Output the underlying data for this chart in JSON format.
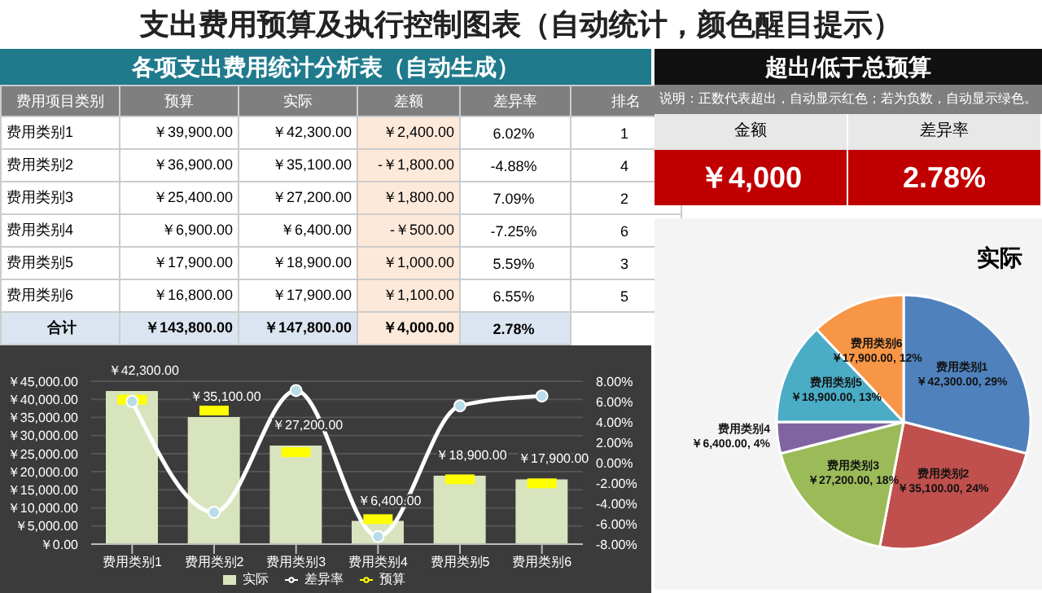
{
  "chart_data": [
    {
      "type": "other",
      "title": "支出费用预算及执行控制图表（自动统计，颜色醒目提示）",
      "subtitle": "各项支出费用统计分析表（自动生成）",
      "categories": [
        "费用项目类别",
        "预算",
        "实际",
        "差额",
        "差异率",
        "排名"
      ],
      "y_categories": [
        "费用类别1",
        "费用类别2",
        "费用类别3",
        "费用类别4",
        "费用类别5",
        "费用类别6",
        "合计"
      ],
      "cell_labels": [
        [
          "￥39,900.00",
          "￥42,300.00",
          "￥2,400.00",
          "6.02%",
          "1"
        ],
        [
          "￥36,900.00",
          "￥35,100.00",
          "-￥1,800.00",
          "-4.88%",
          "4"
        ],
        [
          "￥25,400.00",
          "￥27,200.00",
          "￥1,800.00",
          "7.09%",
          "2"
        ],
        [
          "￥6,900.00",
          "￥6,400.00",
          "-￥500.00",
          "-7.25%",
          "6"
        ],
        [
          "￥17,900.00",
          "￥18,900.00",
          "￥1,000.00",
          "5.59%",
          "3"
        ],
        [
          "￥16,800.00",
          "￥17,900.00",
          "￥1,100.00",
          "6.55%",
          "5"
        ],
        [
          "￥143,800.00",
          "￥147,800.00",
          "￥4,000.00",
          "2.78%"
        ]
      ]
    },
    {
      "type": "other",
      "title": "超出/低于总预算",
      "subtitle": "说明：正数代表超出，自动显示红色；若为负数，自动显示绿色。",
      "categories": [
        "金额",
        "差异率"
      ],
      "cell_labels": [
        [
          "￥4,000",
          "2.78%"
        ]
      ],
      "color": "#c00000"
    },
    {
      "type": "bar",
      "categories": [
        "费用类别1",
        "费用类别2",
        "费用类别3",
        "费用类别4",
        "费用类别5",
        "费用类别6"
      ],
      "series": [
        {
          "name": "实际",
          "type": "bar",
          "color": "#d7e4bd",
          "values": [
            42300,
            35100,
            27200,
            6400,
            18900,
            17900
          ],
          "value_labels": [
            "￥42,300.00",
            "￥35,100.00",
            "￥27,200.00",
            "￥6,400.00",
            "￥18,900.00",
            "￥17,900.00"
          ]
        },
        {
          "name": "预算",
          "type": "scatter",
          "color": "#ffff00",
          "values": [
            39900,
            36900,
            25400,
            6900,
            17900,
            16800
          ]
        },
        {
          "name": "差异率",
          "type": "line",
          "axis": "y2",
          "color": "#ffffff",
          "marker": "circle",
          "values": [
            6.02,
            -4.88,
            7.09,
            -7.25,
            5.59,
            6.55
          ]
        }
      ],
      "ylim": [
        0,
        45000
      ],
      "yticks": [
        {
          "value": 0,
          "label": "￥0.00"
        },
        {
          "value": 5000,
          "label": "￥5,000.00"
        },
        {
          "value": 10000,
          "label": "￥10,000.00"
        },
        {
          "value": 15000,
          "label": "￥15,000.00"
        },
        {
          "value": 20000,
          "label": "￥20,000.00"
        },
        {
          "value": 25000,
          "label": "￥25,000.00"
        },
        {
          "value": 30000,
          "label": "￥30,000.00"
        },
        {
          "value": 35000,
          "label": "￥35,000.00"
        },
        {
          "value": 40000,
          "label": "￥40,000.00"
        },
        {
          "value": 45000,
          "label": "￥45,000.00"
        }
      ],
      "y2lim": [
        -8,
        8
      ],
      "y2ticks": [
        {
          "value": -8,
          "label": "-8.00%"
        },
        {
          "value": -6,
          "label": "-6.00%"
        },
        {
          "value": -4,
          "label": "-4.00%"
        },
        {
          "value": -2,
          "label": "-2.00%"
        },
        {
          "value": 0,
          "label": "0.00%"
        },
        {
          "value": 2,
          "label": "2.00%"
        },
        {
          "value": 4,
          "label": "4.00%"
        },
        {
          "value": 6,
          "label": "6.00%"
        },
        {
          "value": 8,
          "label": "8.00%"
        }
      ],
      "grid": "y",
      "legend": "bottom"
    },
    {
      "type": "pie",
      "title": "实际",
      "categories": [
        "费用类别1",
        "费用类别2",
        "费用类别3",
        "费用类别4",
        "费用类别5",
        "费用类别6"
      ],
      "values": [
        29,
        24,
        18,
        4,
        13,
        12
      ],
      "colors": [
        "#4f81bd",
        "#c0504d",
        "#9bbb59",
        "#8064a2",
        "#4bacc6",
        "#f79646"
      ],
      "value_labels": [
        "￥42,300.00, 29%",
        "￥35,100.00, 24%",
        "￥27,200.00, 18%",
        "￥6,400.00, 4%",
        "￥18,900.00, 13%",
        "￥17,900.00, 12%"
      ],
      "legend": false
    }
  ]
}
